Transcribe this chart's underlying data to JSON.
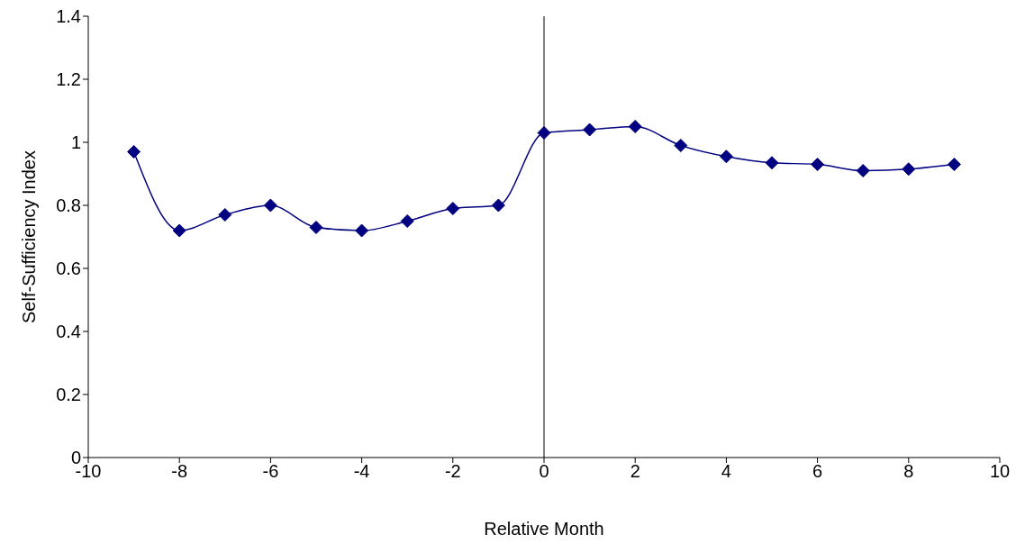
{
  "chart_data": {
    "type": "line",
    "xlabel": "Relative Month",
    "ylabel": "Self-Sufficiency Index",
    "x": [
      -9,
      -8,
      -7,
      -6,
      -5,
      -4,
      -3,
      -2,
      -1,
      0,
      1,
      2,
      3,
      4,
      5,
      6,
      7,
      8,
      9
    ],
    "series": [
      {
        "color": "#000080",
        "values": [
          0.97,
          0.72,
          0.77,
          0.8,
          0.73,
          0.72,
          0.75,
          0.79,
          0.8,
          1.03,
          1.04,
          1.05,
          0.99,
          0.955,
          0.935,
          0.93,
          0.91,
          0.915,
          0.93
        ]
      }
    ],
    "xlim": [
      -10,
      10
    ],
    "xticks": [
      -10,
      -8,
      -6,
      -4,
      -2,
      0,
      2,
      4,
      6,
      8,
      10
    ],
    "ylim": [
      0,
      1.4
    ],
    "yticks": [
      0,
      0.2,
      0.4,
      0.6,
      0.8,
      1,
      1.2,
      1.4
    ],
    "ref_lines": [
      {
        "axis": "x",
        "value": 0,
        "color": "#000000"
      }
    ],
    "grid": false,
    "legend": false,
    "marker": "diamond",
    "line_style": "solid"
  }
}
